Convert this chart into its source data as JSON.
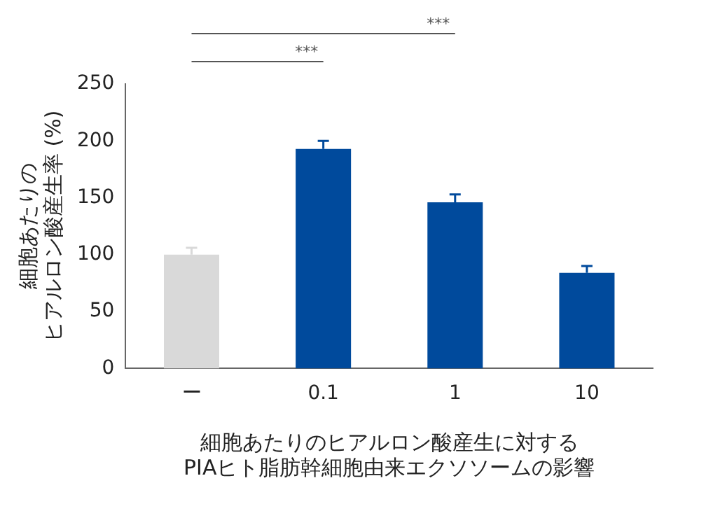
{
  "chart_data": {
    "type": "bar",
    "categories": [
      "ー",
      "0.1",
      "1",
      "10"
    ],
    "values": [
      100,
      193,
      146,
      84
    ],
    "colors": [
      "#d9d9d9",
      "#004a9c",
      "#004a9c",
      "#004a9c"
    ],
    "errors": [
      [
        100,
        106
      ],
      [
        193,
        200
      ],
      [
        146,
        153
      ],
      [
        84,
        90
      ]
    ],
    "ylim": [
      0,
      250
    ],
    "yticks": [
      0,
      50,
      100,
      150,
      200,
      250
    ],
    "grid": false,
    "ylabel": "細胞あたりのヒアルロン酸産生率 (%)",
    "xlabel": "細胞あたりのヒアルロン酸産生に対する\nPIAヒト脂肪幹細胞由来エクソソームの影響",
    "annotations": [
      "***",
      "***"
    ]
  }
}
